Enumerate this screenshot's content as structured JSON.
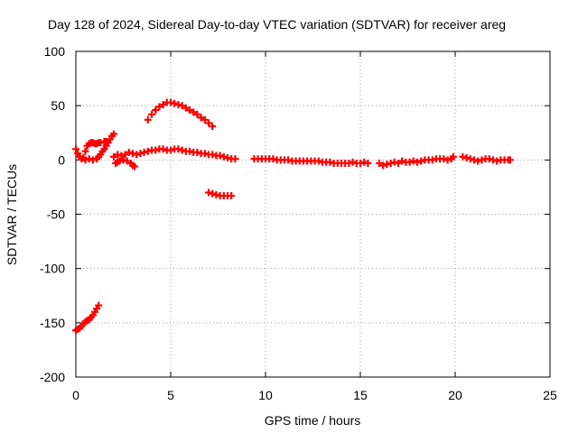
{
  "chart_data": {
    "type": "scatter",
    "title": "Day 128 of 2024, Sidereal Day-to-day VTEC variation (SDTVAR) for receiver areg",
    "xlabel": "GPS time / hours",
    "ylabel": "SDTVAR / TECUs",
    "xlim": [
      0,
      25
    ],
    "ylim": [
      -200,
      100
    ],
    "xticks": [
      0,
      5,
      10,
      15,
      20,
      25
    ],
    "yticks": [
      100,
      50,
      0,
      -50,
      -100,
      -150,
      -200
    ],
    "grid": true,
    "marker": "+",
    "color": "#ff0000",
    "series": [
      {
        "name": "arc-near-zero-start",
        "points": [
          [
            0.0,
            10
          ],
          [
            0.1,
            6
          ],
          [
            0.2,
            3
          ],
          [
            0.3,
            1
          ],
          [
            0.4,
            2
          ],
          [
            0.5,
            8
          ],
          [
            0.6,
            13
          ],
          [
            0.7,
            15
          ],
          [
            0.8,
            16
          ],
          [
            0.9,
            16
          ],
          [
            1.0,
            15
          ],
          [
            1.1,
            15
          ],
          [
            1.2,
            16
          ],
          [
            1.3,
            16
          ],
          [
            1.5,
            17
          ],
          [
            1.6,
            17
          ]
        ]
      },
      {
        "name": "arc-rising-diagonal",
        "points": [
          [
            0.5,
            0
          ],
          [
            0.7,
            1
          ],
          [
            0.9,
            0
          ],
          [
            1.1,
            1
          ],
          [
            1.2,
            3
          ],
          [
            1.3,
            5
          ],
          [
            1.4,
            8
          ],
          [
            1.5,
            10
          ],
          [
            1.6,
            13
          ],
          [
            1.7,
            16
          ],
          [
            1.8,
            19
          ],
          [
            1.9,
            22
          ],
          [
            2.0,
            24
          ]
        ]
      },
      {
        "name": "arc-low-start",
        "points": [
          [
            0.0,
            -157
          ],
          [
            0.1,
            -156
          ],
          [
            0.2,
            -155
          ],
          [
            0.3,
            -153
          ],
          [
            0.4,
            -151
          ],
          [
            0.5,
            -149
          ],
          [
            0.6,
            -148
          ],
          [
            0.7,
            -147
          ],
          [
            0.8,
            -145
          ],
          [
            0.9,
            -143
          ],
          [
            1.0,
            -140
          ],
          [
            1.1,
            -137
          ],
          [
            1.2,
            -134
          ]
        ]
      },
      {
        "name": "arc-hump",
        "points": [
          [
            3.8,
            37
          ],
          [
            4.0,
            42
          ],
          [
            4.2,
            46
          ],
          [
            4.4,
            49
          ],
          [
            4.6,
            51
          ],
          [
            4.8,
            53
          ],
          [
            5.0,
            53
          ],
          [
            5.2,
            52
          ],
          [
            5.4,
            51
          ],
          [
            5.6,
            50
          ],
          [
            5.8,
            48
          ],
          [
            6.0,
            46
          ],
          [
            6.2,
            44
          ],
          [
            6.4,
            42
          ],
          [
            6.6,
            39
          ],
          [
            6.8,
            37
          ],
          [
            7.0,
            34
          ],
          [
            7.2,
            31
          ]
        ]
      },
      {
        "name": "arc-dip",
        "points": [
          [
            2.1,
            -3
          ],
          [
            2.2,
            -2
          ],
          [
            2.3,
            -1
          ],
          [
            2.5,
            0
          ],
          [
            2.7,
            -1
          ],
          [
            2.9,
            -3
          ],
          [
            3.0,
            -5
          ],
          [
            3.1,
            -6
          ]
        ]
      },
      {
        "name": "arc-negative-small",
        "points": [
          [
            7.0,
            -30
          ],
          [
            7.2,
            -31
          ],
          [
            7.4,
            -32
          ],
          [
            7.6,
            -33
          ],
          [
            7.8,
            -33
          ],
          [
            8.0,
            -33
          ],
          [
            8.2,
            -33
          ]
        ]
      },
      {
        "name": "arc-main",
        "points": [
          [
            2.0,
            3
          ],
          [
            2.2,
            5
          ],
          [
            2.4,
            4
          ],
          [
            2.6,
            5
          ],
          [
            2.8,
            7
          ],
          [
            3.0,
            6
          ],
          [
            3.2,
            5
          ],
          [
            3.4,
            6
          ],
          [
            3.6,
            7
          ],
          [
            3.8,
            8
          ],
          [
            4.0,
            9
          ],
          [
            4.2,
            9
          ],
          [
            4.4,
            10
          ],
          [
            4.6,
            10
          ],
          [
            4.8,
            9
          ],
          [
            5.0,
            9
          ],
          [
            5.2,
            10
          ],
          [
            5.4,
            10
          ],
          [
            5.6,
            9
          ],
          [
            5.8,
            8
          ],
          [
            6.0,
            8
          ],
          [
            6.2,
            7
          ],
          [
            6.4,
            7
          ],
          [
            6.6,
            6
          ],
          [
            6.8,
            6
          ],
          [
            7.0,
            5
          ],
          [
            7.2,
            5
          ],
          [
            7.4,
            4
          ],
          [
            7.6,
            4
          ],
          [
            7.8,
            3
          ],
          [
            8.0,
            2
          ],
          [
            8.2,
            1
          ],
          [
            8.4,
            1
          ],
          [
            9.4,
            1
          ],
          [
            9.6,
            1
          ],
          [
            9.8,
            1
          ],
          [
            10.0,
            1
          ],
          [
            10.2,
            1
          ],
          [
            10.4,
            1
          ],
          [
            10.6,
            0
          ],
          [
            10.8,
            0
          ],
          [
            11.0,
            0
          ],
          [
            11.2,
            0
          ],
          [
            11.4,
            -1
          ],
          [
            11.6,
            -1
          ],
          [
            11.8,
            -1
          ],
          [
            12.0,
            -1
          ],
          [
            12.2,
            -1
          ],
          [
            12.4,
            -1
          ],
          [
            12.6,
            -1
          ],
          [
            12.8,
            -1
          ],
          [
            13.0,
            -2
          ],
          [
            13.2,
            -2
          ],
          [
            13.4,
            -2
          ],
          [
            13.6,
            -3
          ],
          [
            13.8,
            -3
          ],
          [
            14.0,
            -3
          ],
          [
            14.2,
            -3
          ],
          [
            14.4,
            -3
          ],
          [
            14.6,
            -2
          ],
          [
            14.8,
            -3
          ],
          [
            15.0,
            -3
          ],
          [
            15.2,
            -2
          ],
          [
            15.4,
            -3
          ]
        ]
      },
      {
        "name": "arc-late-a",
        "points": [
          [
            16.0,
            -3
          ],
          [
            16.2,
            -5
          ],
          [
            16.4,
            -4
          ],
          [
            16.6,
            -3
          ],
          [
            16.8,
            -2
          ],
          [
            17.0,
            -3
          ],
          [
            17.2,
            -1
          ],
          [
            17.4,
            -2
          ],
          [
            17.6,
            -2
          ],
          [
            17.8,
            -1
          ],
          [
            18.0,
            -2
          ],
          [
            18.2,
            -1
          ],
          [
            18.4,
            0
          ],
          [
            18.6,
            0
          ],
          [
            18.8,
            0
          ],
          [
            19.0,
            1
          ],
          [
            19.2,
            1
          ],
          [
            19.4,
            1
          ],
          [
            19.6,
            0
          ],
          [
            19.8,
            1
          ],
          [
            19.9,
            3
          ]
        ]
      },
      {
        "name": "arc-late-b",
        "points": [
          [
            20.4,
            3
          ],
          [
            20.6,
            2
          ],
          [
            20.8,
            1
          ],
          [
            21.0,
            0
          ],
          [
            21.2,
            -1
          ],
          [
            21.4,
            0
          ],
          [
            21.6,
            1
          ],
          [
            21.8,
            1
          ],
          [
            22.0,
            0
          ],
          [
            22.2,
            -1
          ],
          [
            22.4,
            0
          ],
          [
            22.6,
            0
          ],
          [
            22.8,
            0
          ],
          [
            22.9,
            0
          ]
        ]
      }
    ]
  }
}
